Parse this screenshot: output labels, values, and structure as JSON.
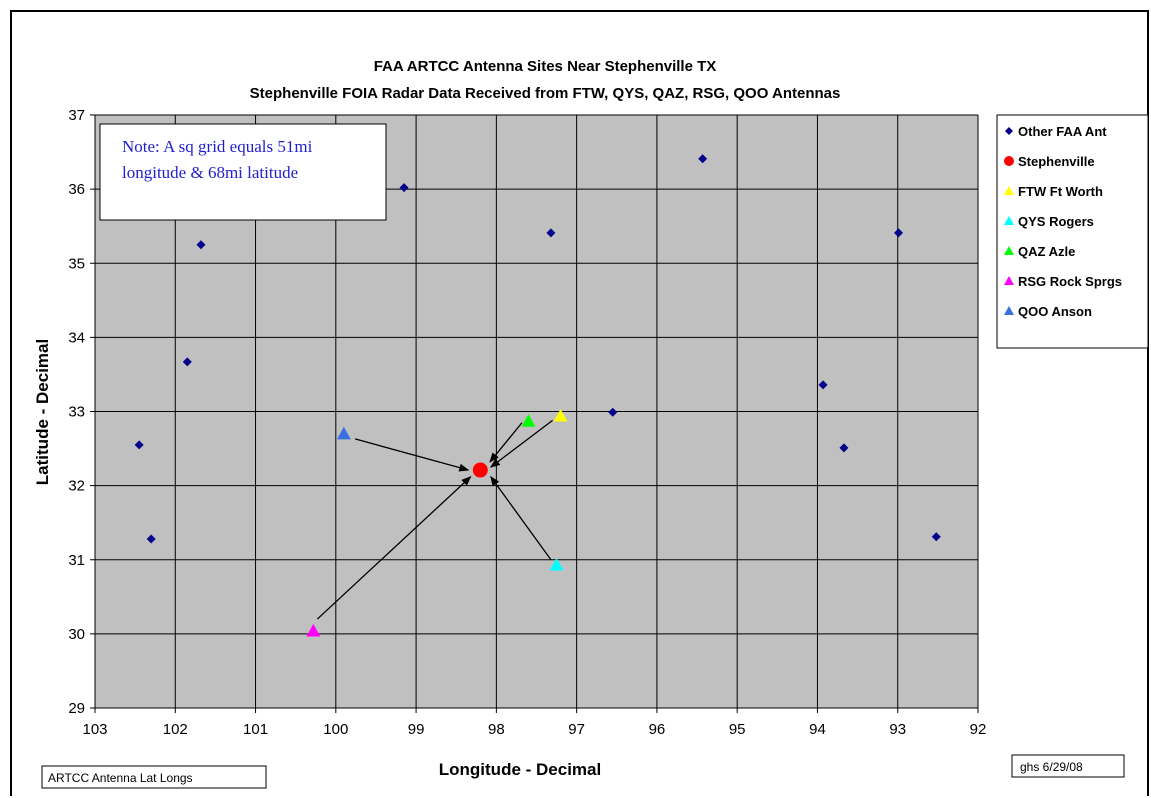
{
  "chart_data": {
    "type": "scatter",
    "title": "FAA ARTCC  Antenna Sites Near Stephenville TX",
    "subtitle": "Stephenville FOIA Radar Data Received from FTW, QYS, QAZ, RSG, QOO Antennas",
    "xlabel": "Longitude - Decimal",
    "ylabel": "Latitude - Decimal",
    "xlim": [
      103,
      92
    ],
    "ylim": [
      29,
      37
    ],
    "x_reversed": true,
    "grid": true,
    "legend_position": "right",
    "xticks": [
      "103",
      "102",
      "101",
      "100",
      "99",
      "98",
      "97",
      "96",
      "95",
      "94",
      "93",
      "92"
    ],
    "yticks": [
      "29",
      "30",
      "31",
      "32",
      "33",
      "34",
      "35",
      "36",
      "37"
    ],
    "series": [
      {
        "name": "Other FAA Ant",
        "marker": "diamond",
        "color": "#00008b",
        "points": [
          {
            "x": 102.45,
            "y": 32.55
          },
          {
            "x": 102.3,
            "y": 31.28
          },
          {
            "x": 101.85,
            "y": 33.67
          },
          {
            "x": 101.68,
            "y": 35.25
          },
          {
            "x": 99.15,
            "y": 36.02
          },
          {
            "x": 97.32,
            "y": 35.41
          },
          {
            "x": 96.55,
            "y": 32.99
          },
          {
            "x": 95.43,
            "y": 36.41
          },
          {
            "x": 93.93,
            "y": 33.36
          },
          {
            "x": 93.67,
            "y": 32.51
          },
          {
            "x": 92.99,
            "y": 35.41
          },
          {
            "x": 92.52,
            "y": 31.31
          }
        ]
      },
      {
        "name": "Stephenville",
        "marker": "circle",
        "color": "#ff0000",
        "points": [
          {
            "x": 98.2,
            "y": 32.21
          }
        ]
      },
      {
        "name": "FTW  Ft Worth",
        "marker": "triangle",
        "color": "#ffff00",
        "points": [
          {
            "x": 97.2,
            "y": 32.94
          }
        ]
      },
      {
        "name": "QYS  Rogers",
        "marker": "triangle",
        "color": "#00ffff",
        "points": [
          {
            "x": 97.25,
            "y": 30.93
          }
        ]
      },
      {
        "name": "QAZ  Azle",
        "marker": "triangle",
        "color": "#00ff00",
        "points": [
          {
            "x": 97.6,
            "y": 32.87
          }
        ]
      },
      {
        "name": "RSG  Rock Sprgs",
        "marker": "triangle",
        "color": "#ff00ff",
        "points": [
          {
            "x": 100.28,
            "y": 30.04
          }
        ]
      },
      {
        "name": "QOO  Anson",
        "marker": "triangle",
        "color": "#3a6fe0",
        "points": [
          {
            "x": 99.9,
            "y": 32.7
          }
        ]
      }
    ],
    "arrows": [
      {
        "from": [
          99.76,
          32.63
        ],
        "to": [
          98.35,
          32.21
        ]
      },
      {
        "from": [
          97.68,
          32.85
        ],
        "to": [
          98.08,
          32.32
        ]
      },
      {
        "from": [
          97.3,
          32.88
        ],
        "to": [
          98.07,
          32.25
        ]
      },
      {
        "from": [
          97.32,
          31.0
        ],
        "to": [
          98.07,
          32.12
        ]
      },
      {
        "from": [
          100.23,
          30.2
        ],
        "to": [
          98.32,
          32.12
        ]
      }
    ],
    "annotations": {
      "note": [
        "Note: A sq grid equals 51mi",
        "longitude & 68mi latitude"
      ],
      "bottom_left_box": "ARTCC Antenna Lat Longs",
      "bottom_right_box": "ghs 6/29/08"
    }
  }
}
